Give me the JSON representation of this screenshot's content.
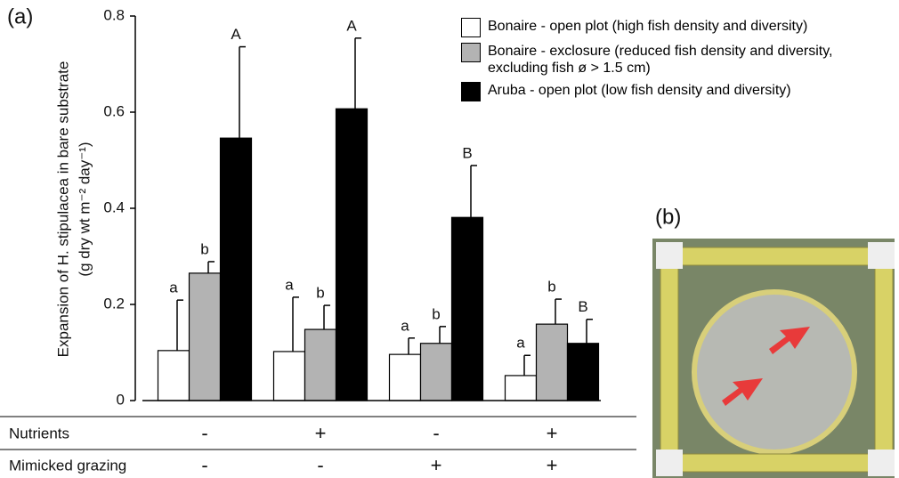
{
  "panel_a_label": "(a)",
  "panel_b_label": "(b)",
  "chart_data": {
    "type": "bar",
    "y_label": "Expansion of H. stipulacea in bare substrate",
    "y_unit": "(g dry wt m⁻² day⁻¹)",
    "categories": [
      null,
      null,
      null,
      null
    ],
    "ylim": [
      0,
      0.8
    ],
    "yticks": [
      0,
      0.2,
      0.4,
      0.6,
      0.8
    ],
    "series": [
      {
        "name": "Bonaire - open plot (high fish density and diversity)",
        "color": "#ffffff",
        "values": [
          0.104,
          0.102,
          0.096,
          0.052
        ],
        "errors": [
          0.105,
          0.113,
          0.034,
          0.042
        ],
        "labels": [
          "a",
          "a",
          "a",
          "a"
        ]
      },
      {
        "name": "Bonaire - exclosure (reduced fish density and diversity, excluding fish ø > 1.5 cm)",
        "color": "#b3b3b3",
        "values": [
          0.265,
          0.148,
          0.119,
          0.159
        ],
        "errors": [
          0.024,
          0.05,
          0.035,
          0.052
        ],
        "labels": [
          "b",
          "b",
          "b",
          "b"
        ]
      },
      {
        "name": "Aruba - open plot (low fish density and diversity)",
        "color": "#000000",
        "values": [
          0.546,
          0.607,
          0.381,
          0.119
        ],
        "errors": [
          0.19,
          0.147,
          0.108,
          0.05
        ],
        "labels": [
          "A",
          "A",
          "B",
          "B"
        ]
      }
    ]
  },
  "treatments": [
    {
      "name": "Nutrients",
      "levels": [
        "-",
        "+",
        "-",
        "+"
      ]
    },
    {
      "name": "Mimicked grazing",
      "levels": [
        "-",
        "-",
        "+",
        "+"
      ]
    }
  ]
}
